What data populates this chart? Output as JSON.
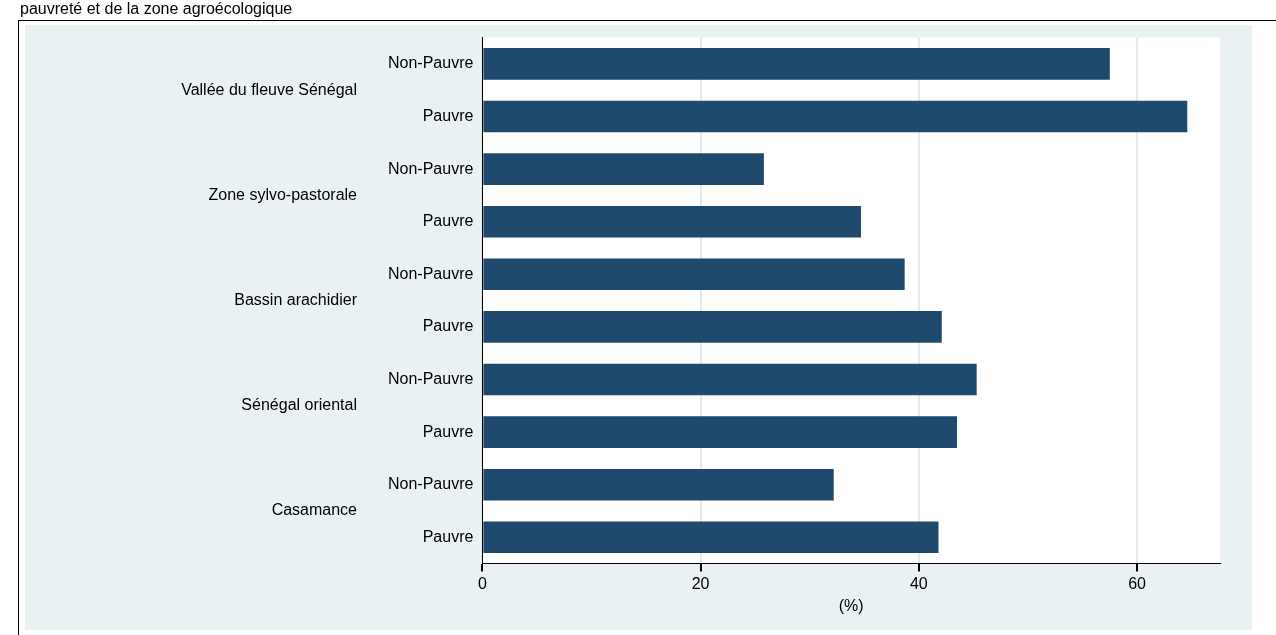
{
  "chart_data": {
    "type": "bar",
    "orientation": "horizontal",
    "title": "pauvreté et de la zone agroécologique",
    "categories": [
      "Non-Pauvre",
      "Pauvre",
      "Non-Pauvre",
      "Pauvre",
      "Non-Pauvre",
      "Pauvre",
      "Non-Pauvre",
      "Pauvre",
      "Non-Pauvre",
      "Pauvre"
    ],
    "values": [
      57.5,
      64.6,
      25.8,
      34.7,
      38.7,
      42.1,
      45.3,
      43.5,
      32.2,
      41.8
    ],
    "color": "#1f4a6e",
    "annotations": [
      "Vallée du fleuve Sénégal",
      "Zone sylvo-pastorale",
      "Bassin arachidier",
      "Sénégal oriental",
      "Casamance"
    ],
    "xlabel": "(%)",
    "xlim": [
      0,
      67.6
    ],
    "xticks": [
      0,
      20,
      40,
      60
    ],
    "grid": "x",
    "legend": false
  }
}
